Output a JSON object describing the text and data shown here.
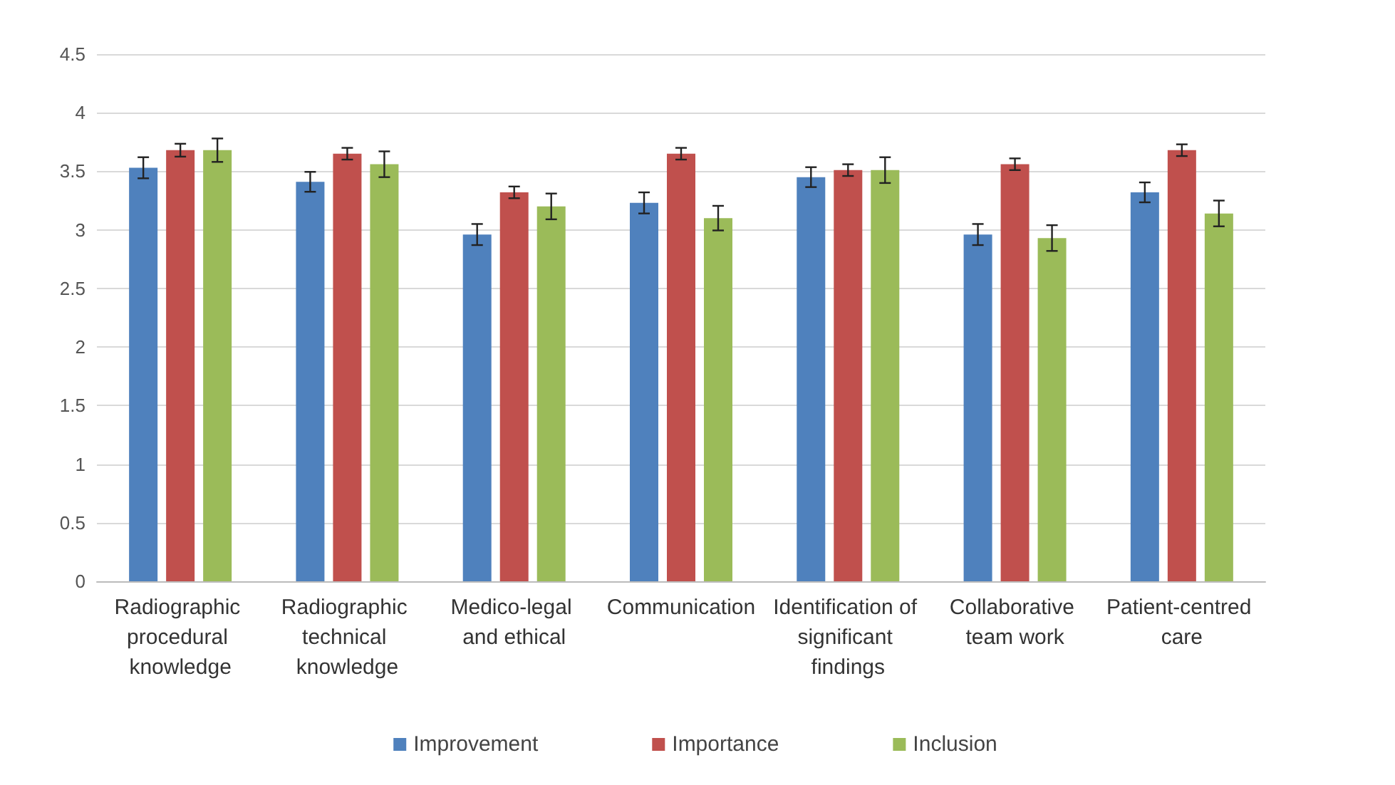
{
  "chart_data": {
    "type": "bar",
    "categories": [
      "Radiographic procedural knowledge",
      "Radiographic technical knowledge",
      "Medico-legal and ethical",
      "Communication",
      "Identification of significant findings",
      "Collaborative team work",
      "Patient-centred care"
    ],
    "series": [
      {
        "name": "Improvement",
        "color": "#4f81bd",
        "values": [
          3.53,
          3.41,
          2.96,
          3.23,
          3.45,
          2.96,
          3.32
        ],
        "errors": [
          0.09,
          0.085,
          0.09,
          0.09,
          0.085,
          0.09,
          0.085
        ]
      },
      {
        "name": "Importance",
        "color": "#c0504d",
        "values": [
          3.68,
          3.65,
          3.32,
          3.65,
          3.51,
          3.56,
          3.68
        ],
        "errors": [
          0.055,
          0.05,
          0.05,
          0.05,
          0.05,
          0.05,
          0.05
        ]
      },
      {
        "name": "Inclusion",
        "color": "#9bbb59",
        "values": [
          3.68,
          3.56,
          3.2,
          3.1,
          3.51,
          2.93,
          3.14
        ],
        "errors": [
          0.1,
          0.11,
          0.11,
          0.105,
          0.11,
          0.11,
          0.11
        ]
      }
    ],
    "ylim": [
      0,
      4.5
    ],
    "yticks": [
      0,
      0.5,
      1,
      1.5,
      2,
      2.5,
      3,
      3.5,
      4,
      4.5
    ],
    "grid": "y",
    "legend": "bottom"
  }
}
